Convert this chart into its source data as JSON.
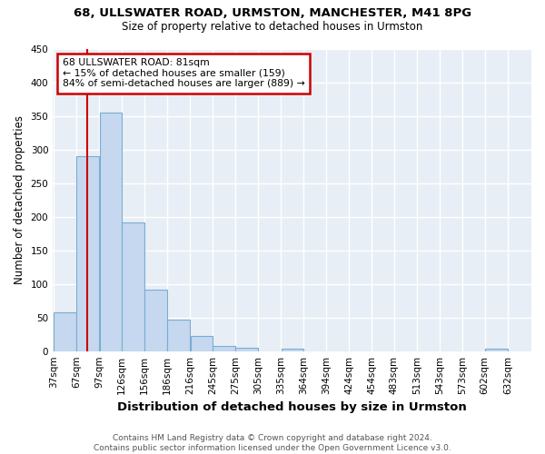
{
  "title1": "68, ULLSWATER ROAD, URMSTON, MANCHESTER, M41 8PG",
  "title2": "Size of property relative to detached houses in Urmston",
  "xlabel": "Distribution of detached houses by size in Urmston",
  "ylabel": "Number of detached properties",
  "footnote": "Contains HM Land Registry data © Crown copyright and database right 2024.\nContains public sector information licensed under the Open Government Licence v3.0.",
  "categories": [
    "37sqm",
    "67sqm",
    "97sqm",
    "126sqm",
    "156sqm",
    "186sqm",
    "216sqm",
    "245sqm",
    "275sqm",
    "305sqm",
    "335sqm",
    "364sqm",
    "394sqm",
    "424sqm",
    "454sqm",
    "483sqm",
    "513sqm",
    "543sqm",
    "573sqm",
    "602sqm",
    "632sqm"
  ],
  "values": [
    58,
    290,
    355,
    192,
    91,
    47,
    22,
    8,
    5,
    0,
    3,
    0,
    0,
    0,
    0,
    0,
    0,
    0,
    0,
    4,
    0
  ],
  "bar_color": "#c5d8ef",
  "bar_edge_color": "#7aadd4",
  "property_line_label": "68 ULLSWATER ROAD: 81sqm",
  "smaller_pct": "15%",
  "smaller_count": 159,
  "larger_pct": "84%",
  "larger_count": 889,
  "annotation_box_color": "#ffffff",
  "annotation_box_edge": "#cc0000",
  "vline_color": "#cc0000",
  "ylim": [
    0,
    450
  ],
  "bin_edges": [
    37,
    67,
    97,
    126,
    156,
    186,
    216,
    245,
    275,
    305,
    335,
    364,
    394,
    424,
    454,
    483,
    513,
    543,
    573,
    602,
    632,
    662
  ],
  "bg_color": "#e8eef5",
  "title1_fontsize": 9.5,
  "title2_fontsize": 8.5,
  "ylabel_fontsize": 8.5,
  "xlabel_fontsize": 9.5,
  "tick_fontsize": 7.5,
  "footnote_fontsize": 6.5
}
